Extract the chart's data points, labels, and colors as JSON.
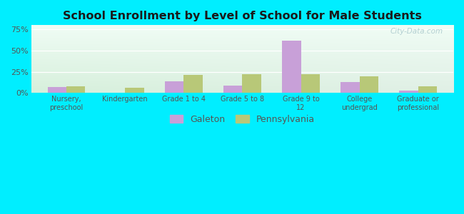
{
  "title": "School Enrollment by Level of School for Male Students",
  "categories": [
    "Nursery,\npreschool",
    "Kindergarten",
    "Grade 1 to 4",
    "Grade 5 to 8",
    "Grade 9 to\n12",
    "College\nundergrad",
    "Graduate or\nprofessional"
  ],
  "galeton_values": [
    7,
    0,
    14,
    9,
    62,
    13,
    3
  ],
  "pennsylvania_values": [
    8,
    6,
    21,
    22,
    22,
    20,
    8
  ],
  "galeton_color": "#c8a0d8",
  "pennsylvania_color": "#b8c878",
  "background_color": "#00eeff",
  "title_color": "#1a1a1a",
  "tick_label_color": "#555555",
  "yticks": [
    0,
    25,
    50,
    75
  ],
  "ylim": [
    0,
    80
  ],
  "bar_width": 0.32,
  "legend_labels": [
    "Galeton",
    "Pennsylvania"
  ],
  "watermark": "City-Data.com",
  "grad_topleft": "#f0fcf8",
  "grad_topright": "#e8f8f8",
  "grad_bottomleft": "#d8f0d8",
  "grad_bottomright": "#e0eeee"
}
